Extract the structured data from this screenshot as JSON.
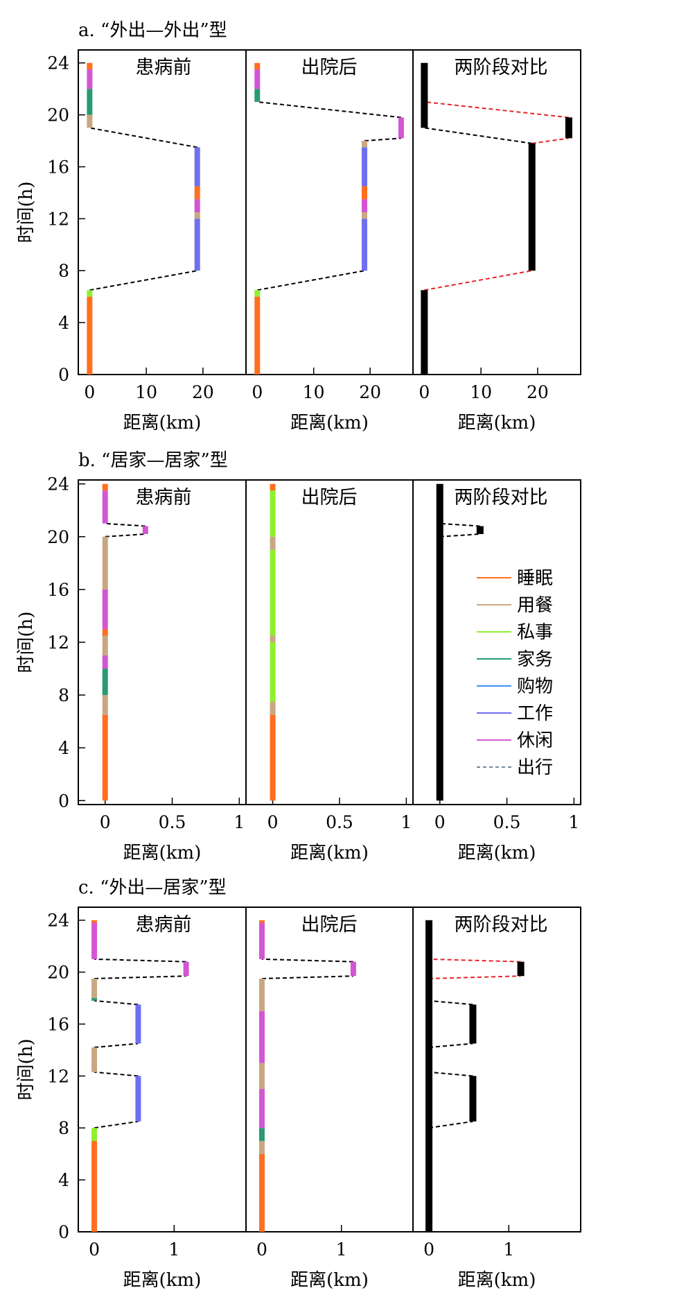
{
  "activity_colors": {
    "sleep": "#ff6f1f",
    "meal": "#c8a882",
    "personal": "#8ef02f",
    "housework": "#2a9a73",
    "shopping": "#3f92f2",
    "work": "#6f6ff2",
    "leisure": "#d455d4"
  },
  "legend": {
    "items": [
      {
        "key": "sleep",
        "label": "睡眠",
        "color": "#ff6f1f",
        "kind": "line"
      },
      {
        "key": "meal",
        "label": "用餐",
        "color": "#c8a882",
        "kind": "line"
      },
      {
        "key": "personal",
        "label": "私事",
        "color": "#8ef02f",
        "kind": "line"
      },
      {
        "key": "housework",
        "label": "家务",
        "color": "#2a9a73",
        "kind": "line"
      },
      {
        "key": "shopping",
        "label": "购物",
        "color": "#3f92f2",
        "kind": "line"
      },
      {
        "key": "work",
        "label": "工作",
        "color": "#6f6ff2",
        "kind": "line"
      },
      {
        "key": "leisure",
        "label": "休闲",
        "color": "#d455d4",
        "kind": "line"
      },
      {
        "key": "travel",
        "label": "出行",
        "color": "#778899",
        "kind": "dashed"
      }
    ]
  },
  "chart_data": [
    {
      "type": "line",
      "title": "a. “外出—外出”型",
      "ylabel": "时间(h)",
      "xlabel": "距离(km)",
      "ylim": [
        0,
        25
      ],
      "yticks": [
        0,
        4,
        8,
        12,
        16,
        20,
        24
      ],
      "xlim": [
        -2,
        27.6
      ],
      "xticks": [
        0,
        10,
        20
      ],
      "xtick_labels": [
        "0",
        "10",
        "20"
      ],
      "panels": [
        {
          "title": "患病前",
          "segments": [
            {
              "x": 0,
              "y0": 0,
              "y1": 6.0,
              "activity": "sleep"
            },
            {
              "x": 0,
              "y0": 6.0,
              "y1": 6.5,
              "activity": "personal"
            },
            {
              "x": 19,
              "y0": 8.0,
              "y1": 12.0,
              "activity": "work"
            },
            {
              "x": 19,
              "y0": 12.0,
              "y1": 12.5,
              "activity": "meal"
            },
            {
              "x": 19,
              "y0": 12.5,
              "y1": 13.5,
              "activity": "leisure"
            },
            {
              "x": 19,
              "y0": 13.5,
              "y1": 14.5,
              "activity": "sleep"
            },
            {
              "x": 19,
              "y0": 14.5,
              "y1": 17.5,
              "activity": "work"
            },
            {
              "x": 0,
              "y0": 19.0,
              "y1": 20.0,
              "activity": "meal"
            },
            {
              "x": 0,
              "y0": 20.0,
              "y1": 22.0,
              "activity": "housework"
            },
            {
              "x": 0,
              "y0": 22.0,
              "y1": 23.5,
              "activity": "leisure"
            },
            {
              "x": 0,
              "y0": 23.5,
              "y1": 24.0,
              "activity": "sleep"
            }
          ],
          "trips": [
            {
              "x0": 0,
              "y0": 6.5,
              "x1": 19,
              "y1": 8.0
            },
            {
              "x0": 19,
              "y0": 17.5,
              "x1": 0,
              "y1": 19.0
            }
          ]
        },
        {
          "title": "出院后",
          "segments": [
            {
              "x": 0,
              "y0": 0,
              "y1": 6.0,
              "activity": "sleep"
            },
            {
              "x": 0,
              "y0": 6.0,
              "y1": 6.5,
              "activity": "personal"
            },
            {
              "x": 19,
              "y0": 8.0,
              "y1": 12.0,
              "activity": "work"
            },
            {
              "x": 19,
              "y0": 12.0,
              "y1": 12.5,
              "activity": "meal"
            },
            {
              "x": 19,
              "y0": 12.5,
              "y1": 13.5,
              "activity": "leisure"
            },
            {
              "x": 19,
              "y0": 13.5,
              "y1": 14.5,
              "activity": "sleep"
            },
            {
              "x": 19,
              "y0": 14.5,
              "y1": 17.5,
              "activity": "work"
            },
            {
              "x": 19,
              "y0": 17.5,
              "y1": 18.0,
              "activity": "meal"
            },
            {
              "x": 25.5,
              "y0": 18.2,
              "y1": 19.8,
              "activity": "leisure"
            },
            {
              "x": 0,
              "y0": 21.0,
              "y1": 22.0,
              "activity": "housework"
            },
            {
              "x": 0,
              "y0": 22.0,
              "y1": 23.5,
              "activity": "leisure"
            },
            {
              "x": 0,
              "y0": 23.5,
              "y1": 24.0,
              "activity": "sleep"
            }
          ],
          "trips": [
            {
              "x0": 0,
              "y0": 6.5,
              "x1": 19,
              "y1": 8.0
            },
            {
              "x0": 19,
              "y0": 18.0,
              "x1": 25.5,
              "y1": 18.2
            },
            {
              "x0": 25.5,
              "y0": 19.8,
              "x1": 0,
              "y1": 21.0
            }
          ]
        },
        {
          "title": "两阶段对比",
          "segments": [
            {
              "x": 0,
              "y0": 0,
              "y1": 6.5,
              "activity": "comparison"
            },
            {
              "x": 19,
              "y0": 8.0,
              "y1": 17.8,
              "activity": "comparison"
            },
            {
              "x": 25.5,
              "y0": 18.2,
              "y1": 19.8,
              "activity": "comparison"
            },
            {
              "x": 0,
              "y0": 19.0,
              "y1": 24.0,
              "activity": "comparison"
            }
          ],
          "trips": [
            {
              "x0": 0,
              "y0": 6.5,
              "x1": 19,
              "y1": 8.0,
              "color": "red"
            },
            {
              "x0": 19,
              "y0": 17.8,
              "x1": 0,
              "y1": 19.0,
              "color": "black"
            },
            {
              "x0": 19,
              "y0": 17.8,
              "x1": 25.5,
              "y1": 18.2,
              "color": "red"
            },
            {
              "x0": 25.5,
              "y0": 19.8,
              "x1": 0,
              "y1": 21.0,
              "color": "red"
            }
          ]
        }
      ]
    },
    {
      "type": "line",
      "title": "b. “居家—居家”型",
      "ylabel": "时间(h)",
      "xlabel": "距离(km)",
      "ylim": [
        -0.3,
        24.3
      ],
      "yticks": [
        0,
        4,
        8,
        12,
        16,
        20,
        24
      ],
      "xlim": [
        -0.2,
        1.05
      ],
      "xticks": [
        0,
        0.5,
        1
      ],
      "xtick_labels": [
        "0",
        "0.5",
        "1"
      ],
      "panels": [
        {
          "title": "患病前",
          "segments": [
            {
              "x": 0,
              "y0": 0,
              "y1": 6.5,
              "activity": "sleep"
            },
            {
              "x": 0,
              "y0": 6.5,
              "y1": 8.0,
              "activity": "meal"
            },
            {
              "x": 0,
              "y0": 8.0,
              "y1": 10.0,
              "activity": "housework"
            },
            {
              "x": 0,
              "y0": 10.0,
              "y1": 11.0,
              "activity": "leisure"
            },
            {
              "x": 0,
              "y0": 11.0,
              "y1": 12.5,
              "activity": "meal"
            },
            {
              "x": 0,
              "y0": 12.5,
              "y1": 13.0,
              "activity": "sleep"
            },
            {
              "x": 0,
              "y0": 13.0,
              "y1": 16.0,
              "activity": "leisure"
            },
            {
              "x": 0,
              "y0": 16.0,
              "y1": 20.0,
              "activity": "meal"
            },
            {
              "x": 0.3,
              "y0": 20.2,
              "y1": 20.8,
              "activity": "leisure"
            },
            {
              "x": 0,
              "y0": 21.0,
              "y1": 23.5,
              "activity": "leisure"
            },
            {
              "x": 0,
              "y0": 23.5,
              "y1": 24.0,
              "activity": "sleep"
            }
          ],
          "trips": [
            {
              "x0": 0,
              "y0": 20.0,
              "x1": 0.3,
              "y1": 20.2
            },
            {
              "x0": 0.3,
              "y0": 20.8,
              "x1": 0,
              "y1": 21.0
            }
          ]
        },
        {
          "title": "出院后",
          "segments": [
            {
              "x": 0,
              "y0": 0,
              "y1": 6.5,
              "activity": "sleep"
            },
            {
              "x": 0,
              "y0": 6.5,
              "y1": 7.5,
              "activity": "meal"
            },
            {
              "x": 0,
              "y0": 7.5,
              "y1": 12.0,
              "activity": "personal"
            },
            {
              "x": 0,
              "y0": 12.0,
              "y1": 12.5,
              "activity": "meal"
            },
            {
              "x": 0,
              "y0": 12.5,
              "y1": 19.0,
              "activity": "personal"
            },
            {
              "x": 0,
              "y0": 19.0,
              "y1": 20.0,
              "activity": "meal"
            },
            {
              "x": 0,
              "y0": 20.0,
              "y1": 23.5,
              "activity": "personal"
            },
            {
              "x": 0,
              "y0": 23.5,
              "y1": 24.0,
              "activity": "sleep"
            }
          ],
          "trips": []
        },
        {
          "title": "两阶段对比",
          "segments": [
            {
              "x": 0,
              "y0": 0,
              "y1": 24.0,
              "activity": "comparison"
            },
            {
              "x": 0.3,
              "y0": 20.2,
              "y1": 20.8,
              "activity": "comparison"
            }
          ],
          "trips": [
            {
              "x0": 0,
              "y0": 20.0,
              "x1": 0.3,
              "y1": 20.2,
              "color": "black"
            },
            {
              "x0": 0.3,
              "y0": 20.8,
              "x1": 0,
              "y1": 21.0,
              "color": "black"
            }
          ]
        }
      ]
    },
    {
      "type": "line",
      "title": "c. “外出—居家”型",
      "ylabel": "时间(h)",
      "xlabel": "距离(km)",
      "ylim": [
        0,
        25
      ],
      "yticks": [
        0,
        4,
        8,
        12,
        16,
        20,
        24
      ],
      "xlim": [
        -0.2,
        1.9
      ],
      "xticks": [
        0,
        1
      ],
      "xtick_labels": [
        "0",
        "1"
      ],
      "panels": [
        {
          "title": "患病前",
          "segments": [
            {
              "x": 0,
              "y0": 0,
              "y1": 7.0,
              "activity": "sleep"
            },
            {
              "x": 0,
              "y0": 7.0,
              "y1": 8.0,
              "activity": "personal"
            },
            {
              "x": 0.55,
              "y0": 8.5,
              "y1": 12.0,
              "activity": "work"
            },
            {
              "x": 0,
              "y0": 12.3,
              "y1": 14.2,
              "activity": "meal"
            },
            {
              "x": 0.55,
              "y0": 14.5,
              "y1": 17.5,
              "activity": "work"
            },
            {
              "x": 0,
              "y0": 17.8,
              "y1": 18.0,
              "activity": "housework"
            },
            {
              "x": 0,
              "y0": 18.0,
              "y1": 19.5,
              "activity": "meal"
            },
            {
              "x": 1.15,
              "y0": 19.7,
              "y1": 20.8,
              "activity": "leisure"
            },
            {
              "x": 0,
              "y0": 21.0,
              "y1": 23.8,
              "activity": "leisure"
            },
            {
              "x": 0,
              "y0": 23.8,
              "y1": 24.0,
              "activity": "sleep"
            }
          ],
          "trips": [
            {
              "x0": 0,
              "y0": 8.0,
              "x1": 0.55,
              "y1": 8.5
            },
            {
              "x0": 0.55,
              "y0": 12.0,
              "x1": 0,
              "y1": 12.3
            },
            {
              "x0": 0,
              "y0": 14.2,
              "x1": 0.55,
              "y1": 14.5
            },
            {
              "x0": 0.55,
              "y0": 17.5,
              "x1": 0,
              "y1": 17.8
            },
            {
              "x0": 0,
              "y0": 19.5,
              "x1": 1.15,
              "y1": 19.7
            },
            {
              "x0": 1.15,
              "y0": 20.8,
              "x1": 0,
              "y1": 21.0
            }
          ]
        },
        {
          "title": "出院后",
          "segments": [
            {
              "x": 0,
              "y0": 0,
              "y1": 6.0,
              "activity": "sleep"
            },
            {
              "x": 0,
              "y0": 6.0,
              "y1": 7.0,
              "activity": "meal"
            },
            {
              "x": 0,
              "y0": 7.0,
              "y1": 8.0,
              "activity": "housework"
            },
            {
              "x": 0,
              "y0": 8.0,
              "y1": 11.0,
              "activity": "leisure"
            },
            {
              "x": 0,
              "y0": 11.0,
              "y1": 13.0,
              "activity": "meal"
            },
            {
              "x": 0,
              "y0": 13.0,
              "y1": 17.0,
              "activity": "leisure"
            },
            {
              "x": 0,
              "y0": 17.0,
              "y1": 19.5,
              "activity": "meal"
            },
            {
              "x": 1.15,
              "y0": 19.7,
              "y1": 20.8,
              "activity": "leisure"
            },
            {
              "x": 0,
              "y0": 21.0,
              "y1": 23.8,
              "activity": "leisure"
            },
            {
              "x": 0,
              "y0": 23.8,
              "y1": 24.0,
              "activity": "sleep"
            }
          ],
          "trips": [
            {
              "x0": 0,
              "y0": 19.5,
              "x1": 1.15,
              "y1": 19.7
            },
            {
              "x0": 1.15,
              "y0": 20.8,
              "x1": 0,
              "y1": 21.0
            }
          ]
        },
        {
          "title": "两阶段对比",
          "segments": [
            {
              "x": 0,
              "y0": 0,
              "y1": 24.0,
              "activity": "comparison"
            },
            {
              "x": 0.55,
              "y0": 8.5,
              "y1": 12.0,
              "activity": "comparison"
            },
            {
              "x": 0.55,
              "y0": 14.5,
              "y1": 17.5,
              "activity": "comparison"
            },
            {
              "x": 1.15,
              "y0": 19.7,
              "y1": 20.8,
              "activity": "comparison"
            }
          ],
          "trips": [
            {
              "x0": 0,
              "y0": 8.0,
              "x1": 0.55,
              "y1": 8.5,
              "color": "black"
            },
            {
              "x0": 0.55,
              "y0": 12.0,
              "x1": 0,
              "y1": 12.3,
              "color": "black"
            },
            {
              "x0": 0,
              "y0": 14.2,
              "x1": 0.55,
              "y1": 14.5,
              "color": "black"
            },
            {
              "x0": 0.55,
              "y0": 17.5,
              "x1": 0,
              "y1": 17.8,
              "color": "black"
            },
            {
              "x0": 0,
              "y0": 19.5,
              "x1": 1.15,
              "y1": 19.7,
              "color": "red"
            },
            {
              "x0": 1.15,
              "y0": 20.8,
              "x1": 0,
              "y1": 21.0,
              "color": "red"
            }
          ]
        }
      ]
    }
  ]
}
